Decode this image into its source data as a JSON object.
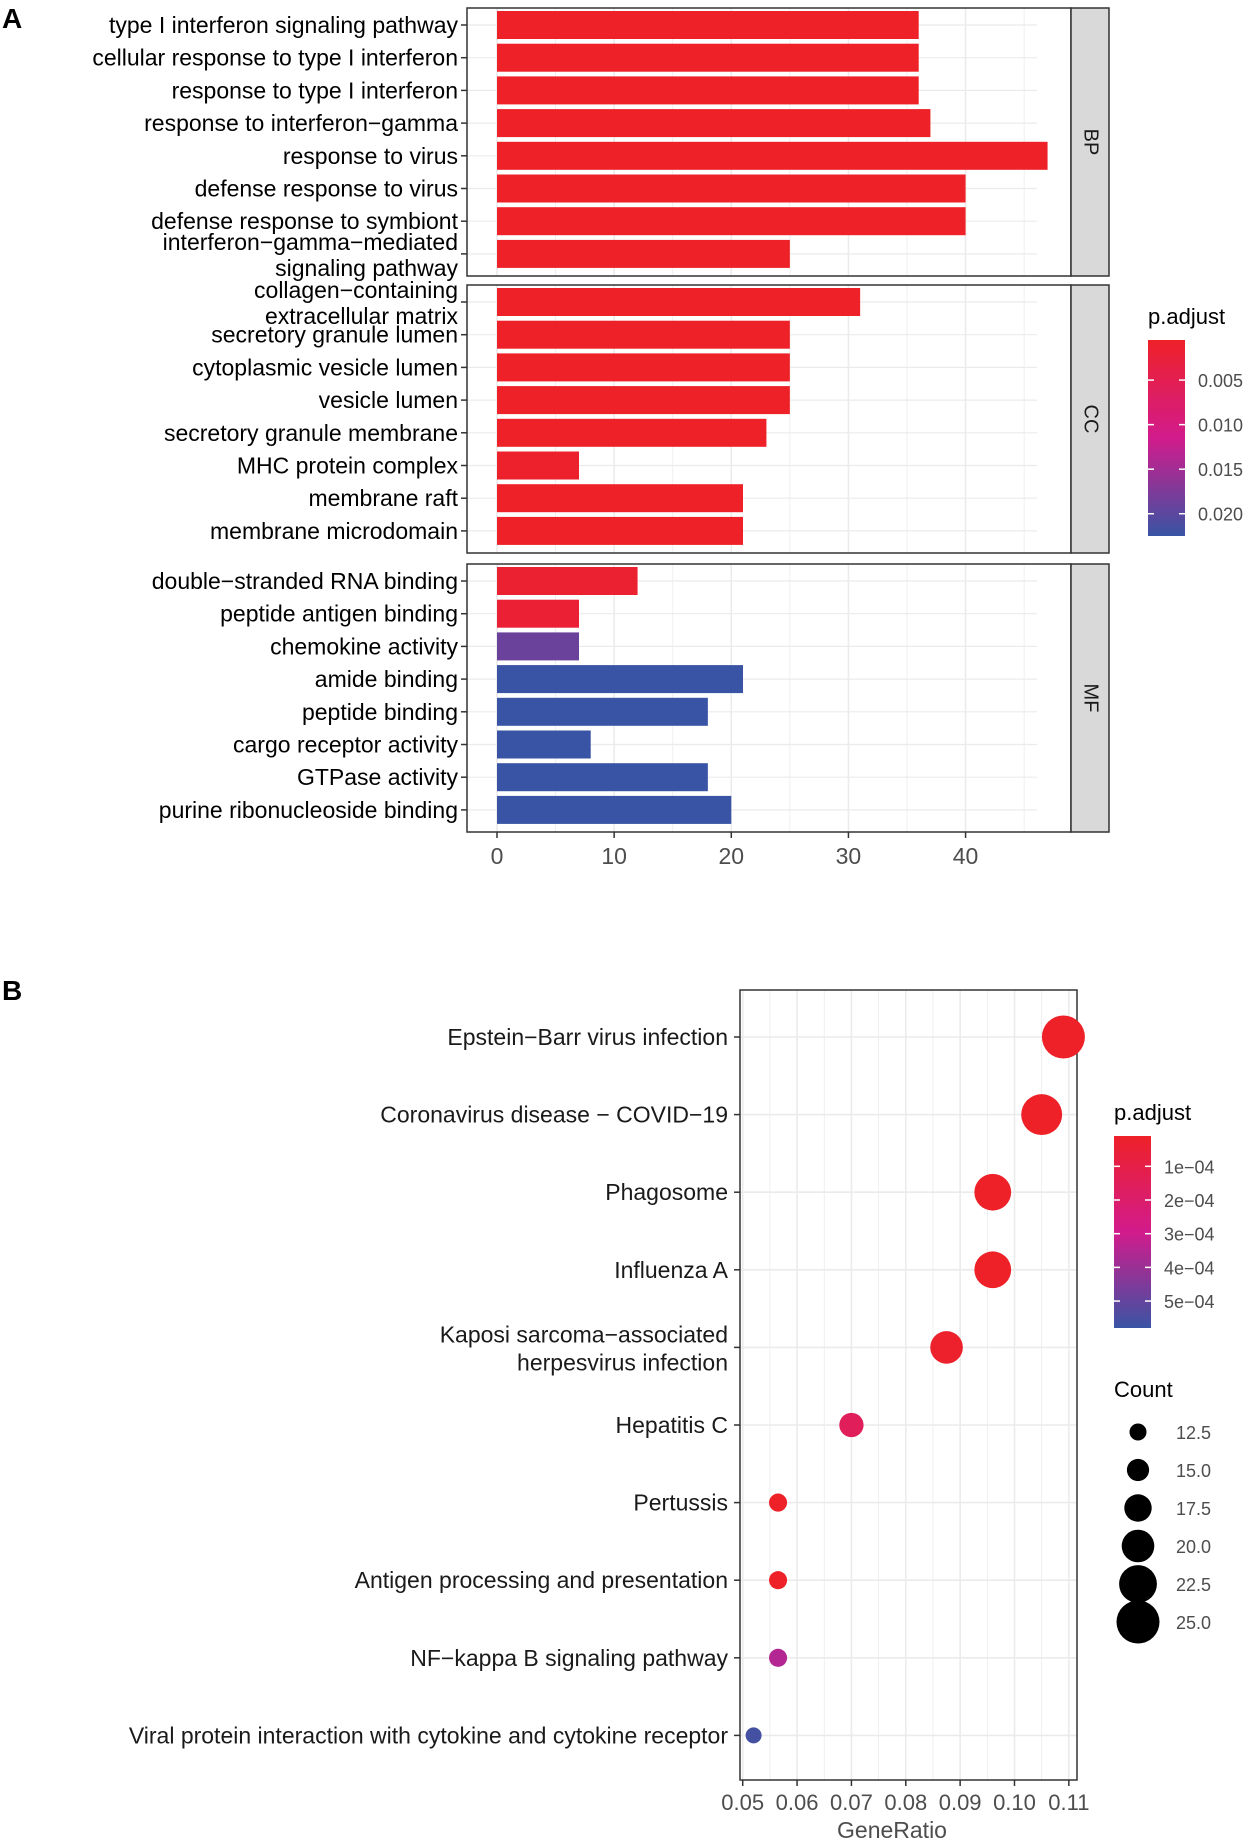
{
  "panel_labels": [
    "A",
    "B"
  ],
  "colors": {
    "high": "#ee2128",
    "mid": "#d21b8c",
    "low": "#3954a4",
    "grid": "#ebebeb",
    "strip": "#d9d9d9"
  },
  "chart_data": [
    {
      "type": "bar",
      "orientation": "horizontal",
      "panel": "A",
      "title": "",
      "xlabel": "",
      "ylabel": "",
      "xlim": [
        0,
        49
      ],
      "xticks": [
        0,
        10,
        20,
        30,
        40
      ],
      "facets": [
        {
          "name": "BP",
          "categories": [
            "type I interferon signaling pathway",
            "cellular response to type I interferon",
            "response to type I interferon",
            "response to interferon−gamma",
            "response to virus",
            "defense response to virus",
            "defense response to symbiont",
            "interferon−gamma−mediated\nsignaling pathway"
          ],
          "values": [
            36,
            36,
            36,
            37,
            47,
            40,
            40,
            25
          ],
          "p_adjust": [
            0.0005,
            0.0005,
            0.0005,
            0.0005,
            0.0005,
            0.0005,
            0.0005,
            0.0005
          ]
        },
        {
          "name": "CC",
          "categories": [
            "collagen−containing\nextracellular matrix",
            "secretory granule lumen",
            "cytoplasmic vesicle lumen",
            "vesicle lumen",
            "secretory granule membrane",
            "MHC protein complex",
            "membrane raft",
            "membrane microdomain"
          ],
          "values": [
            31,
            25,
            25,
            25,
            23,
            7,
            21,
            21
          ],
          "p_adjust": [
            0.0005,
            0.0005,
            0.0005,
            0.0005,
            0.0005,
            0.0008,
            0.0005,
            0.0005
          ]
        },
        {
          "name": "MF",
          "categories": [
            "double−stranded RNA binding",
            "peptide antigen binding",
            "chemokine activity",
            "amide binding",
            "peptide binding",
            "cargo receptor activity",
            "GTPase activity",
            "purine ribonucleoside binding"
          ],
          "values": [
            12,
            7,
            7,
            21,
            18,
            8,
            18,
            20
          ],
          "p_adjust": [
            0.0015,
            0.0018,
            0.019,
            0.023,
            0.023,
            0.023,
            0.023,
            0.023
          ]
        }
      ],
      "legend": {
        "title": "p.adjust",
        "range": [
          0.0005,
          0.0225
        ],
        "ticks": [
          0.005,
          0.01,
          0.015,
          0.02
        ],
        "tick_labels": [
          "0.005",
          "0.010",
          "0.015",
          "0.020"
        ],
        "position": "right"
      }
    },
    {
      "type": "scatter",
      "panel": "B",
      "title": "",
      "xlabel": "GeneRatio",
      "ylabel": "",
      "xlim": [
        0.0495,
        0.1115
      ],
      "xticks": [
        0.05,
        0.06,
        0.07,
        0.08,
        0.09,
        0.1,
        0.11
      ],
      "xtick_labels": [
        "0.05",
        "0.06",
        "0.07",
        "0.08",
        "0.09",
        "0.10",
        "0.11"
      ],
      "categories": [
        "Epstein−Barr virus infection",
        "Coronavirus disease − COVID−19",
        "Phagosome",
        "Influenza A",
        "Kaposi sarcoma−associated\nherpesvirus infection",
        "Hepatitis C",
        "Pertussis",
        "Antigen processing and presentation",
        "NF−kappa B signaling pathway",
        "Viral protein interaction with cytokine and cytokine receptor"
      ],
      "gene_ratio": [
        0.109,
        0.105,
        0.096,
        0.096,
        0.0875,
        0.07,
        0.0565,
        0.0565,
        0.0565,
        0.052
      ],
      "count": [
        25,
        24,
        22,
        22,
        20,
        16,
        13,
        13,
        13,
        12
      ],
      "p_adjust": [
        1e-05,
        1e-05,
        1e-05,
        1e-05,
        2e-05,
        0.00015,
        1e-05,
        1e-05,
        0.00035,
        0.00056
      ],
      "color_legend": {
        "title": "p.adjust",
        "range": [
          1e-05,
          0.00058
        ],
        "ticks": [
          0.0001,
          0.0002,
          0.0003,
          0.0004,
          0.0005
        ],
        "tick_labels": [
          "1e−04",
          "2e−04",
          "3e−04",
          "4e−04",
          "5e−04"
        ],
        "position": "right"
      },
      "size_legend": {
        "title": "Count",
        "values": [
          12.5,
          15.0,
          17.5,
          20.0,
          22.5,
          25.0
        ],
        "labels": [
          "12.5",
          "15.0",
          "17.5",
          "20.0",
          "22.5",
          "25.0"
        ]
      }
    }
  ]
}
